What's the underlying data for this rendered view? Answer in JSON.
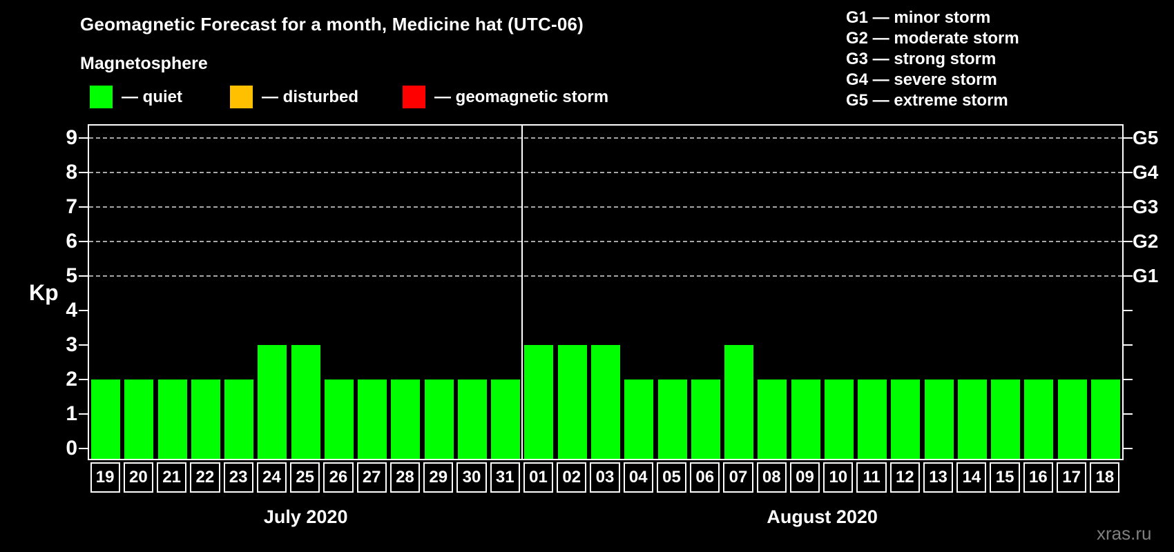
{
  "title": "Geomagnetic Forecast for a month, Medicine hat (UTC-06)",
  "subtitle": "Magnetosphere",
  "legend": [
    {
      "label": "— quiet",
      "color": "#00ff00"
    },
    {
      "label": "— disturbed",
      "color": "#ffc000"
    },
    {
      "label": "— geomagnetic storm",
      "color": "#ff0000"
    }
  ],
  "g_legend": [
    "G1 — minor storm",
    "G2 — moderate storm",
    "G3 — strong storm",
    "G4 — severe storm",
    "G5 — extreme storm"
  ],
  "watermark": "xras.ru",
  "colors": {
    "background": "#000000",
    "text": "#ffffff",
    "quiet": "#00ff00",
    "disturbed": "#ffc000",
    "storm": "#ff0000",
    "grid": "#a8a8a8",
    "watermark": "#7f7f7f"
  },
  "chart_data": {
    "type": "bar",
    "title": "Geomagnetic Forecast for a month, Medicine hat (UTC-06)",
    "ylabel": "Kp",
    "ylim": [
      0,
      9
    ],
    "yticks": [
      0,
      1,
      2,
      3,
      4,
      5,
      6,
      7,
      8,
      9
    ],
    "gridlines_at_kp": [
      5,
      6,
      7,
      8,
      9
    ],
    "grid_style": "dashed horizontal",
    "right_axis": [
      {
        "kp": 5,
        "label": "G1"
      },
      {
        "kp": 6,
        "label": "G2"
      },
      {
        "kp": 7,
        "label": "G3"
      },
      {
        "kp": 8,
        "label": "G4"
      },
      {
        "kp": 9,
        "label": "G5"
      }
    ],
    "legend_position": "top-left",
    "bar_color_rule": {
      "quiet": "#00ff00",
      "disturbed": "#ffc000",
      "storm": "#ff0000"
    },
    "months": [
      {
        "label": "July 2020",
        "days": [
          "19",
          "20",
          "21",
          "22",
          "23",
          "24",
          "25",
          "26",
          "27",
          "28",
          "29",
          "30",
          "31"
        ],
        "values": [
          2,
          2,
          2,
          2,
          2,
          3,
          3,
          2,
          2,
          2,
          2,
          2,
          2
        ]
      },
      {
        "label": "August 2020",
        "days": [
          "01",
          "02",
          "03",
          "04",
          "05",
          "06",
          "07",
          "08",
          "09",
          "10",
          "11",
          "12",
          "13",
          "14",
          "15",
          "16",
          "17",
          "18"
        ],
        "values": [
          3,
          3,
          3,
          2,
          2,
          2,
          3,
          2,
          2,
          2,
          2,
          2,
          2,
          2,
          2,
          2,
          2,
          2
        ]
      }
    ]
  }
}
